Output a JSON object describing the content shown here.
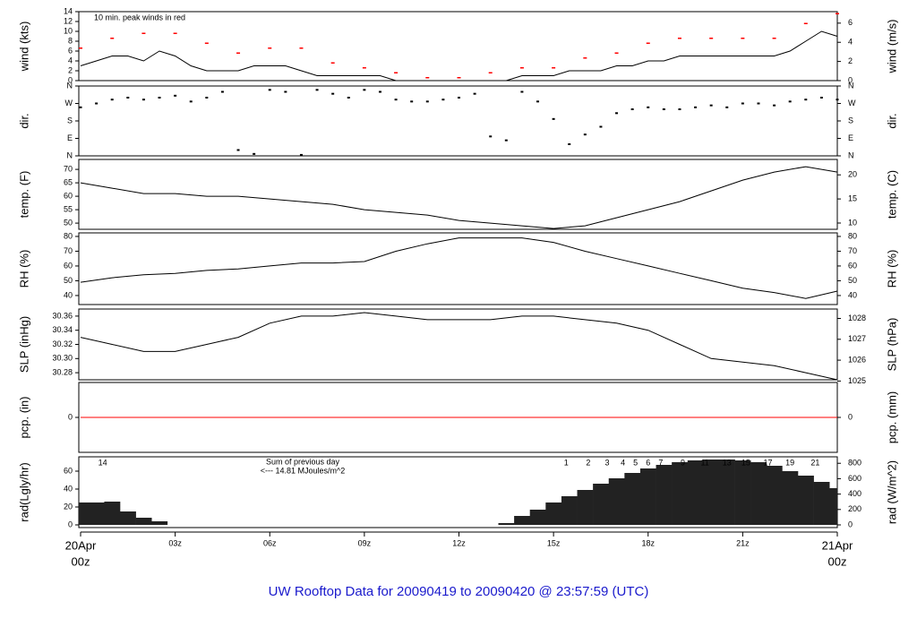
{
  "title": "UW Rooftop Data for 20090419  to  20090420 @ 23:57:59  (UTC)",
  "chart_data": [
    {
      "type": "line",
      "ylabel": "wind (kts)",
      "y2label": "wind (m/s)",
      "color": "#000000",
      "annotation": "10 min. peak winds in red",
      "annotation_color": "#ff0000",
      "ylim": [
        0,
        14
      ],
      "yticks": [
        0,
        2,
        4,
        6,
        8,
        10,
        12,
        14
      ],
      "y2lim": [
        0,
        7.2
      ],
      "y2ticks": [
        0,
        2,
        4,
        6
      ],
      "x": [
        0,
        0.5,
        1,
        1.5,
        2,
        2.5,
        3,
        3.5,
        4,
        4.5,
        5,
        5.5,
        6,
        6.5,
        7,
        7.5,
        8,
        8.5,
        9,
        9.5,
        10,
        10.5,
        11,
        11.5,
        12,
        12.5,
        13,
        13.5,
        14,
        14.5,
        15,
        15.5,
        16,
        16.5,
        17,
        17.5,
        18,
        18.5,
        19,
        19.5,
        20,
        20.5,
        21,
        21.5,
        22,
        22.5,
        23,
        23.5,
        24
      ],
      "values": [
        3,
        4,
        5,
        5,
        4,
        6,
        5,
        3,
        2,
        2,
        2,
        3,
        3,
        3,
        2,
        1,
        1,
        1,
        1,
        1,
        0,
        0,
        0,
        0,
        0,
        0,
        0,
        0,
        1,
        1,
        1,
        2,
        2,
        2,
        3,
        3,
        4,
        4,
        5,
        5,
        5,
        5,
        5,
        5,
        5,
        6,
        8,
        10,
        9
      ],
      "peak_color": "#ff0000",
      "peak_x": [
        0,
        1,
        2,
        3,
        4,
        5,
        6,
        7,
        8,
        9,
        10,
        11,
        12,
        13,
        14,
        15,
        16,
        17,
        18,
        19,
        20,
        21,
        22,
        23,
        24
      ],
      "peaks": [
        6,
        8,
        9,
        9,
        7,
        5,
        6,
        6,
        3,
        2,
        1,
        0,
        0,
        1,
        2,
        2,
        4,
        5,
        7,
        8,
        8,
        8,
        8,
        11,
        13
      ]
    },
    {
      "type": "scatter",
      "ylabel": "dir.",
      "y2label": "dir.",
      "color": "#000000",
      "ylim": [
        0,
        360
      ],
      "yticks": [
        {
          "value": 0,
          "label": "N"
        },
        {
          "value": 90,
          "label": "E"
        },
        {
          "value": 180,
          "label": "S"
        },
        {
          "value": 270,
          "label": "W"
        },
        {
          "value": 360,
          "label": "N"
        }
      ],
      "y2lim": [
        0,
        360
      ],
      "y2ticks": [
        {
          "value": 0,
          "label": "N"
        },
        {
          "value": 90,
          "label": "E"
        },
        {
          "value": 180,
          "label": "S"
        },
        {
          "value": 270,
          "label": "W"
        },
        {
          "value": 360,
          "label": "N"
        }
      ],
      "x": [
        0,
        0.5,
        1,
        1.5,
        2,
        2.5,
        3,
        3.5,
        4,
        4.5,
        5,
        5.5,
        6,
        6.5,
        7,
        7.5,
        8,
        8.5,
        9,
        9.5,
        10,
        10.5,
        11,
        11.5,
        12,
        12.5,
        13,
        13.5,
        14,
        14.5,
        15,
        15.5,
        16,
        16.5,
        17,
        17.5,
        18,
        18.5,
        19,
        19.5,
        20,
        20.5,
        21,
        21.5,
        22,
        22.5,
        23,
        23.5,
        24
      ],
      "values": [
        250,
        270,
        290,
        300,
        290,
        300,
        310,
        280,
        300,
        330,
        30,
        10,
        340,
        330,
        5,
        340,
        320,
        300,
        340,
        330,
        290,
        280,
        280,
        290,
        300,
        320,
        100,
        80,
        330,
        280,
        190,
        60,
        110,
        150,
        220,
        240,
        250,
        240,
        240,
        250,
        260,
        250,
        270,
        270,
        260,
        280,
        290,
        300,
        290
      ]
    },
    {
      "type": "line",
      "ylabel": "temp. (F)",
      "y2label": "temp. (C)",
      "color": "#000000",
      "ylim": [
        47.7,
        73.7
      ],
      "yticks": [
        50,
        55,
        60,
        65,
        70
      ],
      "y2lim": [
        8.7,
        23.2
      ],
      "y2ticks": [
        10,
        15,
        20
      ],
      "x": [
        0,
        1,
        2,
        3,
        4,
        5,
        6,
        7,
        8,
        9,
        10,
        11,
        12,
        13,
        14,
        15,
        16,
        17,
        18,
        19,
        20,
        21,
        22,
        23,
        24
      ],
      "values": [
        65,
        63,
        61,
        61,
        60,
        60,
        59,
        58,
        57,
        55,
        54,
        53,
        51,
        50,
        49,
        48,
        49,
        52,
        55,
        58,
        62,
        66,
        69,
        71,
        69
      ]
    },
    {
      "type": "line",
      "ylabel": "RH (%)",
      "y2label": "RH (%)",
      "color": "#000000",
      "ylim": [
        33.9,
        82.4
      ],
      "yticks": [
        40,
        50,
        60,
        70,
        80
      ],
      "y2lim": [
        33.9,
        82.4
      ],
      "y2ticks": [
        40,
        50,
        60,
        70,
        80
      ],
      "x": [
        0,
        1,
        2,
        3,
        4,
        5,
        6,
        7,
        8,
        9,
        10,
        11,
        12,
        13,
        14,
        15,
        16,
        17,
        18,
        19,
        20,
        21,
        22,
        23,
        24
      ],
      "values": [
        49,
        52,
        54,
        55,
        57,
        58,
        60,
        62,
        62,
        63,
        70,
        75,
        79,
        79,
        79,
        76,
        70,
        65,
        60,
        55,
        50,
        45,
        42,
        38,
        43
      ]
    },
    {
      "type": "line",
      "ylabel": "SLP (inHg)",
      "y2label": "SLP (hPa)",
      "color": "#000000",
      "ylim": [
        30.27,
        30.37
      ],
      "yticks": [
        30.28,
        {
          "value": 30.3,
          "label": "30.30"
        },
        30.32,
        30.34,
        30.36
      ],
      "y2lim": [
        1025.06,
        1028.45
      ],
      "y2ticks": [
        1025,
        1026,
        1027,
        1028
      ],
      "x": [
        0,
        1,
        2,
        3,
        4,
        5,
        6,
        7,
        8,
        9,
        10,
        11,
        12,
        13,
        14,
        15,
        16,
        17,
        18,
        19,
        20,
        21,
        22,
        23,
        24
      ],
      "values": [
        30.33,
        30.32,
        30.31,
        30.31,
        30.32,
        30.33,
        30.35,
        30.36,
        30.36,
        30.365,
        30.36,
        30.355,
        30.355,
        30.355,
        30.36,
        30.36,
        30.355,
        30.35,
        30.34,
        30.32,
        30.3,
        30.295,
        30.29,
        30.28,
        30.27
      ]
    },
    {
      "type": "line",
      "ylabel": "pcp. (in)",
      "y2label": "pcp. (mm)",
      "color": "#ff0000",
      "ylim": [
        -1,
        1
      ],
      "yticks": [
        0
      ],
      "y2lim": [
        -25,
        25
      ],
      "y2ticks": [
        0
      ],
      "x": [
        0,
        24
      ],
      "values": [
        0,
        0
      ]
    },
    {
      "type": "bar",
      "ylabel": "rad(Lgly/hr)",
      "y2label": "rad (W/m^2)",
      "color": "#222222",
      "ylim": [
        -3,
        76
      ],
      "yticks": [
        0,
        20,
        40,
        60
      ],
      "y2lim": [
        -35,
        884
      ],
      "y2ticks": [
        0,
        200,
        400,
        600,
        800
      ],
      "x": [
        0,
        0.5,
        1,
        1.5,
        2,
        2.5,
        3,
        3.5,
        4,
        4.5,
        5,
        5.5,
        6,
        6.5,
        7,
        7.5,
        8,
        8.5,
        9,
        9.5,
        10,
        10.5,
        11,
        11.5,
        12,
        12.5,
        13,
        13.5,
        14,
        14.5,
        15,
        15.5,
        16,
        16.5,
        17,
        17.5,
        18,
        18.5,
        19,
        19.5,
        20,
        20.5,
        21,
        21.5,
        22,
        22.5,
        23,
        23.5,
        24
      ],
      "values": [
        25,
        25,
        26,
        15,
        8,
        4,
        0,
        0,
        0,
        0,
        0,
        0,
        0,
        0,
        0,
        0,
        0,
        0,
        0,
        0,
        0,
        0,
        0,
        0,
        0,
        0,
        0,
        2,
        10,
        17,
        25,
        32,
        39,
        46,
        52,
        58,
        63,
        67,
        70,
        72,
        73,
        73,
        72,
        70,
        66,
        60,
        55,
        48,
        41
      ],
      "annotation_color": "#9900cc",
      "annotations": [
        "Sum of previous day",
        "<--- 14.81 MJoules/m^2"
      ],
      "hour_labels": [
        "14",
        "1",
        "2",
        "3",
        "4",
        "5",
        "6",
        "7",
        "9",
        "11",
        "13",
        "15",
        "17",
        "19",
        "21"
      ],
      "hour_label_x": [
        0.7,
        15.4,
        16.1,
        16.7,
        17.2,
        17.6,
        18.0,
        18.4,
        19.1,
        19.8,
        20.5,
        21.1,
        21.8,
        22.5,
        23.3
      ],
      "xlim": [
        0,
        24
      ],
      "xticks": [
        {
          "value": 0,
          "label": "00z"
        },
        {
          "value": 3,
          "label": "03z"
        },
        {
          "value": 6,
          "label": "06z"
        },
        {
          "value": 9,
          "label": "09z"
        },
        {
          "value": 12,
          "label": "12z"
        },
        {
          "value": 15,
          "label": "15z"
        },
        {
          "value": 18,
          "label": "18z"
        },
        {
          "value": 21,
          "label": "21z"
        },
        {
          "value": 24,
          "label": "00z"
        }
      ],
      "x_date_color": "#ff0000",
      "x_dates": [
        {
          "value": 0,
          "label": "20Apr"
        },
        {
          "value": 24,
          "label": "21Apr"
        }
      ]
    }
  ]
}
